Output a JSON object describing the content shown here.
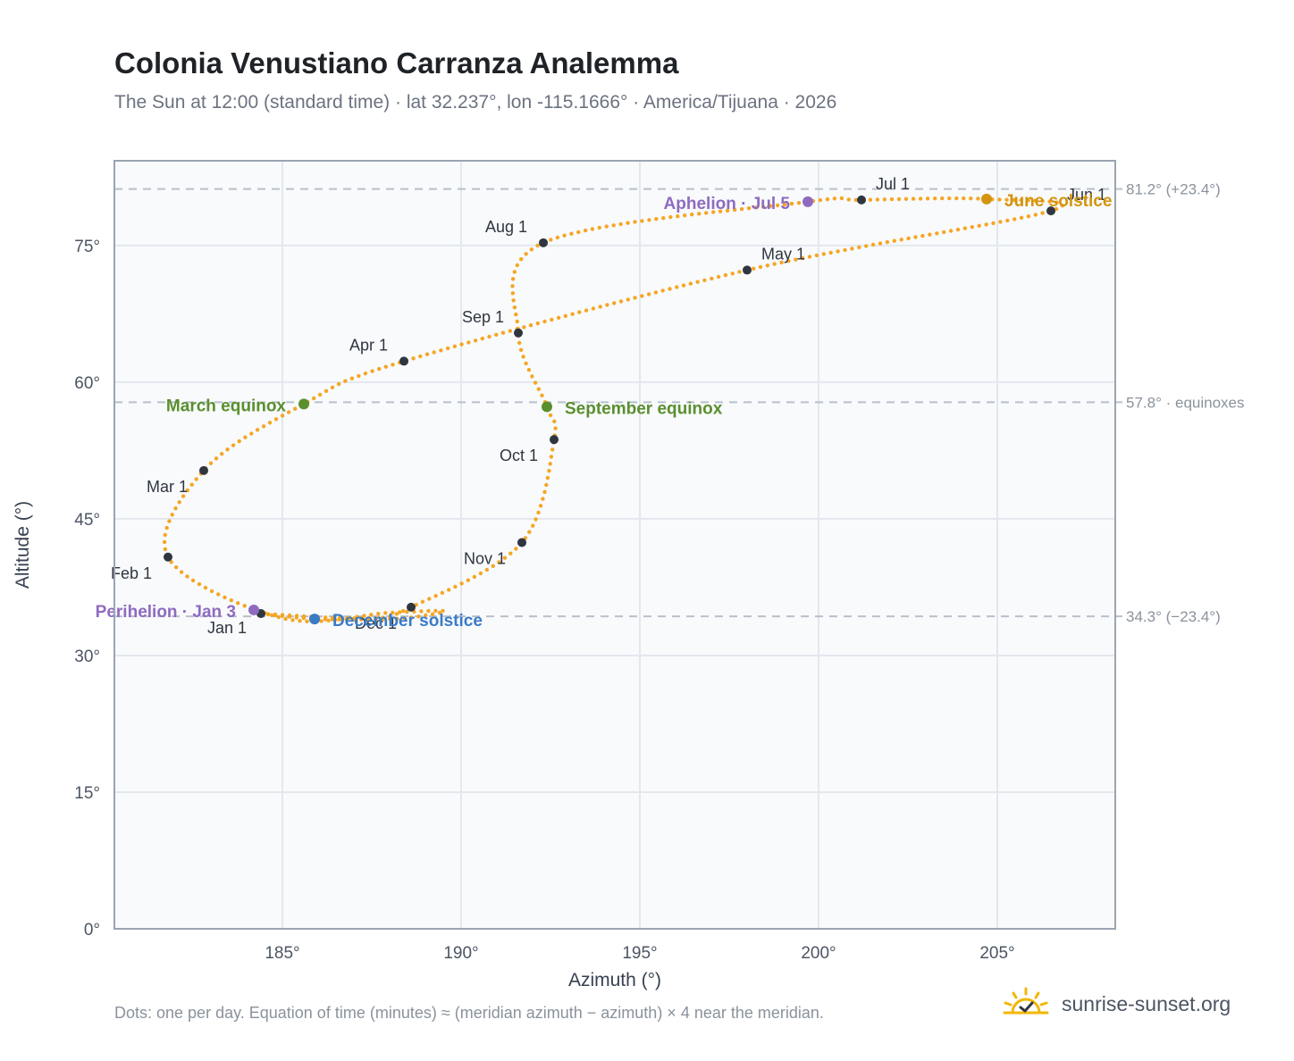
{
  "title": "Colonia Venustiano Carranza Analemma",
  "subtitle": "The Sun at 12:00 (standard time) · lat 32.237°, lon -115.1666° · America/Tijuana · 2026",
  "footnote": "Dots: one per day. Equation of time (minutes) ≈ (meridian azimuth − azimuth) × 4 near the meridian.",
  "brand": {
    "text": "sunrise-sunset.org",
    "icon": "sun-check-icon"
  },
  "colors": {
    "curve": "#f5a623",
    "month_marker": "#2f3640",
    "equinox": "#5a8f2e",
    "june_solstice": "#d4940f",
    "december_solstice": "#3a7bc8",
    "apsis": "#8e6bbf",
    "grid": "#e3e8ee",
    "plot_bg": "#f8fafc",
    "frame": "#9aa4b2",
    "ref_line": "#b8c0ca"
  },
  "chart_data": {
    "type": "scatter",
    "xlabel": "Azimuth (°)",
    "ylabel": "Altitude (°)",
    "xlim": [
      180.3,
      208.3
    ],
    "ylim": [
      0,
      84.3
    ],
    "x_ticks": [
      {
        "value": 185,
        "label": "185°"
      },
      {
        "value": 190,
        "label": "190°"
      },
      {
        "value": 195,
        "label": "195°"
      },
      {
        "value": 200,
        "label": "200°"
      },
      {
        "value": 205,
        "label": "205°"
      }
    ],
    "y_ticks": [
      {
        "value": 0,
        "label": "0°"
      },
      {
        "value": 15,
        "label": "15°"
      },
      {
        "value": 30,
        "label": "30°"
      },
      {
        "value": 45,
        "label": "45°"
      },
      {
        "value": 60,
        "label": "60°"
      },
      {
        "value": 75,
        "label": "75°"
      }
    ],
    "grid": true,
    "reference_lines": [
      {
        "y": 81.2,
        "label": "81.2° (+23.4°)"
      },
      {
        "y": 57.8,
        "label": "57.8° · equinoxes"
      },
      {
        "y": 34.3,
        "label": "34.3° (−23.4°)"
      }
    ],
    "series": [
      {
        "name": "",
        "points_per": "day",
        "anchors": [
          [
            184.4,
            34.6
          ],
          [
            186.0,
            34.0
          ],
          [
            188.0,
            34.0
          ],
          [
            189.0,
            34.4
          ],
          [
            189.5,
            34.9
          ],
          [
            188.0,
            34.7
          ],
          [
            185.0,
            34.1
          ],
          [
            181.8,
            40.8
          ],
          [
            182.8,
            50.3
          ],
          [
            185.6,
            57.6
          ],
          [
            188.4,
            62.3
          ],
          [
            198.0,
            72.3
          ],
          [
            206.5,
            78.8
          ],
          [
            204.7,
            80.1
          ],
          [
            201.2,
            80.0
          ],
          [
            199.7,
            79.8
          ],
          [
            192.3,
            75.3
          ],
          [
            191.6,
            65.4
          ],
          [
            192.4,
            57.3
          ],
          [
            192.6,
            53.7
          ],
          [
            191.7,
            42.4
          ],
          [
            188.6,
            35.3
          ],
          [
            187.3,
            34.1
          ],
          [
            184.4,
            34.6
          ]
        ]
      }
    ],
    "month_markers": [
      {
        "label": "Jan 1",
        "x": 184.4,
        "y": 34.6
      },
      {
        "label": "Feb 1",
        "x": 181.8,
        "y": 40.8
      },
      {
        "label": "Mar 1",
        "x": 182.8,
        "y": 50.3
      },
      {
        "label": "Apr 1",
        "x": 188.4,
        "y": 62.3
      },
      {
        "label": "May 1",
        "x": 198.0,
        "y": 72.3
      },
      {
        "label": "Jun 1",
        "x": 206.5,
        "y": 78.8
      },
      {
        "label": "Jul 1",
        "x": 201.2,
        "y": 80.0
      },
      {
        "label": "Aug 1",
        "x": 192.3,
        "y": 75.3
      },
      {
        "label": "Sep 1",
        "x": 191.6,
        "y": 65.4
      },
      {
        "label": "Oct 1",
        "x": 192.6,
        "y": 53.7
      },
      {
        "label": "Nov 1",
        "x": 191.7,
        "y": 42.4
      },
      {
        "label": "Dec 1",
        "x": 188.6,
        "y": 35.3
      }
    ],
    "events": [
      {
        "label": "March equinox",
        "x": 185.6,
        "y": 57.6,
        "color_key": "equinox"
      },
      {
        "label": "September equinox",
        "x": 192.4,
        "y": 57.3,
        "color_key": "equinox"
      },
      {
        "label": "June solstice",
        "x": 204.7,
        "y": 80.1,
        "color_key": "june_solstice"
      },
      {
        "label": "December solstice",
        "x": 185.9,
        "y": 34.0,
        "color_key": "december_solstice"
      },
      {
        "label": "Perihelion · Jan 3",
        "x": 184.2,
        "y": 35.0,
        "color_key": "apsis"
      },
      {
        "label": "Aphelion · Jul 5",
        "x": 199.7,
        "y": 79.8,
        "color_key": "apsis"
      }
    ]
  }
}
